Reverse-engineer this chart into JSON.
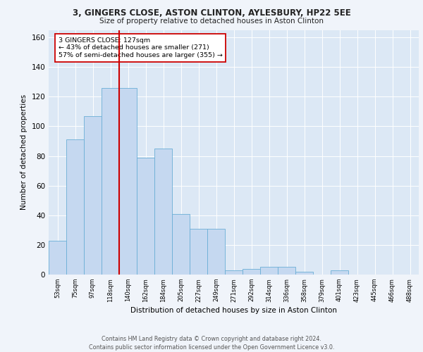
{
  "title_line1": "3, GINGERS CLOSE, ASTON CLINTON, AYLESBURY, HP22 5EE",
  "title_line2": "Size of property relative to detached houses in Aston Clinton",
  "xlabel": "Distribution of detached houses by size in Aston Clinton",
  "ylabel": "Number of detached properties",
  "bar_labels": [
    "53sqm",
    "75sqm",
    "97sqm",
    "118sqm",
    "140sqm",
    "162sqm",
    "184sqm",
    "205sqm",
    "227sqm",
    "249sqm",
    "271sqm",
    "292sqm",
    "314sqm",
    "336sqm",
    "358sqm",
    "379sqm",
    "401sqm",
    "423sqm",
    "445sqm",
    "466sqm",
    "488sqm"
  ],
  "bar_values": [
    23,
    91,
    107,
    126,
    126,
    79,
    85,
    41,
    31,
    31,
    3,
    4,
    5,
    5,
    2,
    0,
    3,
    0,
    0,
    0,
    0
  ],
  "bar_color": "#c5d8f0",
  "bar_edge_color": "#6baed6",
  "vline_x_index": 3,
  "vline_color": "#cc0000",
  "annotation_text": "3 GINGERS CLOSE: 127sqm\n← 43% of detached houses are smaller (271)\n57% of semi-detached houses are larger (355) →",
  "annotation_box_color": "#ffffff",
  "annotation_box_edge": "#cc0000",
  "ylim": [
    0,
    165
  ],
  "yticks": [
    0,
    20,
    40,
    60,
    80,
    100,
    120,
    140,
    160
  ],
  "footer": "Contains HM Land Registry data © Crown copyright and database right 2024.\nContains public sector information licensed under the Open Government Licence v3.0.",
  "fig_facecolor": "#f0f4fa",
  "plot_facecolor": "#dce8f5"
}
